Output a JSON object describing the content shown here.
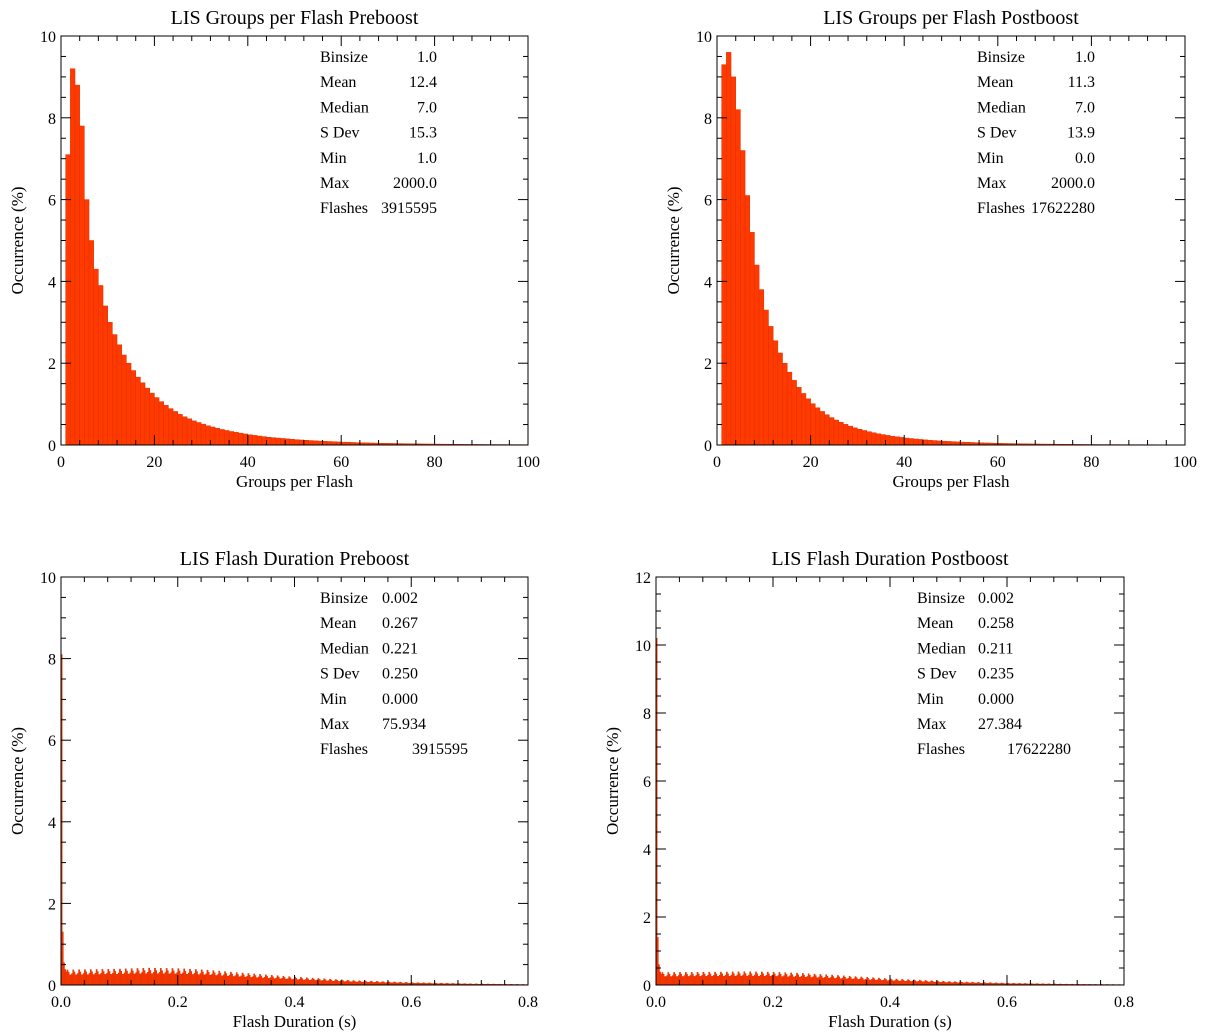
{
  "colors": {
    "bar": "#ff3a00",
    "bar_edge": "#e23000",
    "axis": "#000000",
    "background": "#ffffff"
  },
  "chart_data": [
    {
      "type": "bar",
      "title": "LIS Groups per Flash Preboost",
      "xlabel": "Groups per Flash",
      "ylabel": "Occurrence (%)",
      "xlim": [
        0,
        100
      ],
      "ylim": [
        0,
        10
      ],
      "xticks": [
        0,
        20,
        40,
        60,
        80,
        100
      ],
      "yticks": [
        0,
        2,
        4,
        6,
        8,
        10
      ],
      "xtick_labels": [
        "0",
        "20",
        "40",
        "60",
        "80",
        "100"
      ],
      "ytick_labels": [
        "0",
        "2",
        "4",
        "6",
        "8",
        "10"
      ],
      "bin_width": 1,
      "bin_start": 1,
      "values": [
        7.1,
        9.2,
        8.8,
        7.8,
        6.0,
        5.0,
        4.3,
        3.9,
        3.4,
        3.0,
        2.7,
        2.45,
        2.2,
        2.0,
        1.82,
        1.66,
        1.52,
        1.39,
        1.27,
        1.16,
        1.06,
        0.97,
        0.89,
        0.82,
        0.75,
        0.69,
        0.64,
        0.59,
        0.55,
        0.51,
        0.47,
        0.44,
        0.41,
        0.38,
        0.355,
        0.33,
        0.31,
        0.29,
        0.27,
        0.25,
        0.235,
        0.22,
        0.205,
        0.19,
        0.18,
        0.17,
        0.16,
        0.15,
        0.14,
        0.13,
        0.123,
        0.116,
        0.109,
        0.102,
        0.096,
        0.09,
        0.085,
        0.08,
        0.075,
        0.07,
        0.066,
        0.062,
        0.058,
        0.055,
        0.052,
        0.049,
        0.046,
        0.043,
        0.041,
        0.039,
        0.037,
        0.035,
        0.033,
        0.031,
        0.029,
        0.028,
        0.026,
        0.025,
        0.024,
        0.022,
        0.021,
        0.02,
        0.019,
        0.018,
        0.017,
        0.016,
        0.015,
        0.015,
        0.014,
        0.013,
        0.012,
        0.012,
        0.011,
        0.011,
        0.01,
        0.01,
        0.009,
        0.009,
        0.008
      ],
      "stats": [
        {
          "label": "Binsize",
          "value": "1.0"
        },
        {
          "label": "Mean",
          "value": "12.4"
        },
        {
          "label": "Median",
          "value": "7.0"
        },
        {
          "label": "S Dev",
          "value": "15.3"
        },
        {
          "label": "Min",
          "value": "1.0"
        },
        {
          "label": "Max",
          "value": "2000.0"
        },
        {
          "label": "Flashes",
          "value": "3915595"
        }
      ]
    },
    {
      "type": "bar",
      "title": "LIS Groups per Flash Postboost",
      "xlabel": "Groups per Flash",
      "ylabel": "Occurrence (%)",
      "xlim": [
        0,
        100
      ],
      "ylim": [
        0,
        10
      ],
      "xticks": [
        0,
        20,
        40,
        60,
        80,
        100
      ],
      "yticks": [
        0,
        2,
        4,
        6,
        8,
        10
      ],
      "xtick_labels": [
        "0",
        "20",
        "40",
        "60",
        "80",
        "100"
      ],
      "ytick_labels": [
        "0",
        "2",
        "4",
        "6",
        "8",
        "10"
      ],
      "bin_width": 1,
      "bin_start": 1,
      "values": [
        9.3,
        9.6,
        9.0,
        8.2,
        7.2,
        6.1,
        5.2,
        4.4,
        3.8,
        3.3,
        2.9,
        2.55,
        2.25,
        2.0,
        1.78,
        1.58,
        1.41,
        1.26,
        1.13,
        1.01,
        0.91,
        0.82,
        0.74,
        0.67,
        0.61,
        0.555,
        0.505,
        0.46,
        0.42,
        0.385,
        0.355,
        0.325,
        0.3,
        0.275,
        0.255,
        0.235,
        0.215,
        0.2,
        0.185,
        0.17,
        0.158,
        0.147,
        0.136,
        0.126,
        0.117,
        0.109,
        0.101,
        0.094,
        0.088,
        0.082,
        0.076,
        0.071,
        0.066,
        0.062,
        0.058,
        0.054,
        0.05,
        0.047,
        0.044,
        0.041,
        0.038,
        0.036,
        0.034,
        0.032,
        0.03,
        0.028,
        0.026,
        0.025,
        0.023,
        0.022,
        0.021,
        0.02,
        0.019,
        0.018,
        0.017,
        0.016,
        0.015,
        0.014,
        0.013,
        0.013,
        0.012,
        0.011,
        0.011,
        0.01,
        0.01,
        0.009,
        0.009,
        0.008,
        0.008,
        0.008,
        0.007,
        0.007,
        0.007,
        0.006,
        0.006,
        0.006,
        0.005,
        0.005,
        0.005
      ],
      "stats": [
        {
          "label": "Binsize",
          "value": "1.0"
        },
        {
          "label": "Mean",
          "value": "11.3"
        },
        {
          "label": "Median",
          "value": "7.0"
        },
        {
          "label": "S Dev",
          "value": "13.9"
        },
        {
          "label": "Min",
          "value": "0.0"
        },
        {
          "label": "Max",
          "value": "2000.0"
        },
        {
          "label": "Flashes",
          "value": "17622280"
        }
      ]
    },
    {
      "type": "bar",
      "title": "LIS Flash Duration Preboost",
      "xlabel": "Flash Duration (s)",
      "ylabel": "Occurrence (%)",
      "xlim": [
        0,
        0.8
      ],
      "ylim": [
        0,
        10
      ],
      "xticks": [
        0,
        0.2,
        0.4,
        0.6,
        0.8
      ],
      "yticks": [
        0,
        2,
        4,
        6,
        8,
        10
      ],
      "xtick_labels": [
        "0.0",
        "0.2",
        "0.4",
        "0.6",
        "0.8"
      ],
      "ytick_labels": [
        "0",
        "2",
        "4",
        "6",
        "8",
        "10"
      ],
      "bin_width": 0.002,
      "bin_start": 0,
      "head_values": [
        8.1,
        1.3,
        0.55,
        0.38,
        0.32
      ],
      "envelope": [
        [
          0.0,
          0.3
        ],
        [
          0.1,
          0.32
        ],
        [
          0.15,
          0.34
        ],
        [
          0.2,
          0.33
        ],
        [
          0.25,
          0.3
        ],
        [
          0.3,
          0.25
        ],
        [
          0.4,
          0.16
        ],
        [
          0.5,
          0.09
        ],
        [
          0.6,
          0.05
        ],
        [
          0.7,
          0.025
        ],
        [
          0.8,
          0.01
        ]
      ],
      "stats": [
        {
          "label": "Binsize",
          "value": "0.002"
        },
        {
          "label": "Mean",
          "value": "0.267"
        },
        {
          "label": "Median",
          "value": "0.221"
        },
        {
          "label": "S Dev",
          "value": "0.250"
        },
        {
          "label": "Min",
          "value": "0.000"
        },
        {
          "label": "Max",
          "value": "75.934"
        },
        {
          "label": "Flashes",
          "value": "3915595"
        }
      ]
    },
    {
      "type": "bar",
      "title": "LIS Flash Duration Postboost",
      "xlabel": "Flash Duration (s)",
      "ylabel": "Occurrence (%)",
      "xlim": [
        0,
        0.8
      ],
      "ylim": [
        0,
        12
      ],
      "xticks": [
        0,
        0.2,
        0.4,
        0.6,
        0.8
      ],
      "yticks": [
        0,
        2,
        4,
        6,
        8,
        10,
        12
      ],
      "xtick_labels": [
        "0.0",
        "0.2",
        "0.4",
        "0.6",
        "0.8"
      ],
      "ytick_labels": [
        "0",
        "2",
        "4",
        "6",
        "8",
        "10",
        "12"
      ],
      "bin_width": 0.002,
      "bin_start": 0,
      "head_values": [
        10.2,
        1.4,
        0.6,
        0.38,
        0.32
      ],
      "envelope": [
        [
          0.0,
          0.3
        ],
        [
          0.1,
          0.31
        ],
        [
          0.15,
          0.32
        ],
        [
          0.2,
          0.31
        ],
        [
          0.25,
          0.28
        ],
        [
          0.3,
          0.24
        ],
        [
          0.4,
          0.15
        ],
        [
          0.5,
          0.085
        ],
        [
          0.6,
          0.045
        ],
        [
          0.7,
          0.022
        ],
        [
          0.8,
          0.01
        ]
      ],
      "stats": [
        {
          "label": "Binsize",
          "value": "0.002"
        },
        {
          "label": "Mean",
          "value": "0.258"
        },
        {
          "label": "Median",
          "value": "0.211"
        },
        {
          "label": "S Dev",
          "value": "0.235"
        },
        {
          "label": "Min",
          "value": "0.000"
        },
        {
          "label": "Max",
          "value": "27.384"
        },
        {
          "label": "Flashes",
          "value": "17622280"
        }
      ]
    }
  ]
}
